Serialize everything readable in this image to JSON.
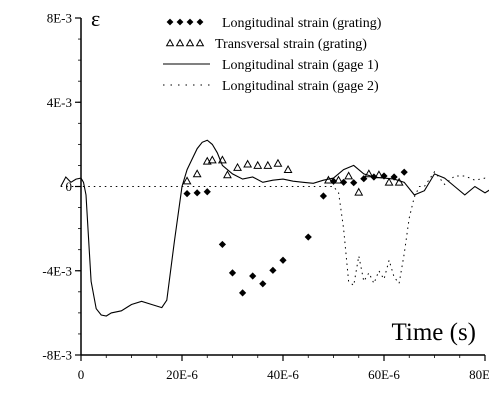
{
  "chart_data": {
    "type": "line",
    "ylabel": "ε",
    "xlabel": "Time (s)",
    "xlim": [
      -4e-06,
      8.5e-05
    ],
    "ylim": [
      -0.008,
      0.008
    ],
    "x_ticks": [
      0,
      2e-05,
      4e-05,
      6e-05,
      8e-05
    ],
    "x_tick_labels": [
      "0",
      "20E-6",
      "40E-6",
      "60E-6",
      "80E-6"
    ],
    "y_ticks": [
      0.008,
      0.004,
      0,
      -0.004,
      -0.008
    ],
    "y_tick_labels": [
      "8E-3",
      "4E-3",
      "0",
      "-4E-3",
      "-8E-3"
    ],
    "legend_position": "top-right",
    "grid": false,
    "series": [
      {
        "name": "Longitudinal strain (grating)",
        "marker": "diamond",
        "color": "#000000",
        "x": [
          2.1e-05,
          2.3e-05,
          2.5e-05,
          2.8e-05,
          3e-05,
          3.2e-05,
          3.4e-05,
          3.6e-05,
          3.8e-05,
          4e-05,
          4.5e-05,
          4.8e-05,
          5e-05,
          5.2e-05,
          5.4e-05,
          5.6e-05,
          5.8e-05,
          6e-05,
          6.2e-05,
          6.4e-05
        ],
        "y": [
          -0.00034,
          -0.0003,
          -0.00025,
          -0.00275,
          -0.0041,
          -0.00505,
          -0.00425,
          -0.00462,
          -0.00398,
          -0.0035,
          -0.0024,
          -0.00045,
          0.00025,
          0.0002,
          0.00018,
          0.00037,
          0.00045,
          0.0005,
          0.00045,
          0.00068
        ]
      },
      {
        "name": "Transversal strain (grating)",
        "marker": "triangle",
        "color": "#000000",
        "x": [
          2.1e-05,
          2.3e-05,
          2.5e-05,
          2.6e-05,
          2.8e-05,
          2.9e-05,
          3.1e-05,
          3.3e-05,
          3.5e-05,
          3.7e-05,
          3.9e-05,
          4.1e-05,
          4.9e-05,
          5.1e-05,
          5.3e-05,
          5.5e-05,
          5.7e-05,
          5.9e-05,
          6.1e-05,
          6.3e-05
        ],
        "y": [
          0.00026,
          0.0006,
          0.0012,
          0.00126,
          0.00126,
          0.00055,
          0.0009,
          0.00106,
          0.001,
          0.001,
          0.0011,
          0.0008,
          0.0003,
          0.0003,
          0.0005,
          -0.00027,
          0.0006,
          0.00055,
          0.0002,
          0.0002
        ]
      },
      {
        "name": "Longitudinal strain (gage 1)",
        "line": "solid",
        "color": "#000000",
        "x": [
          -4e-06,
          -3e-06,
          -2e-06,
          -1e-06,
          0,
          5e-07,
          1e-06,
          1.5e-06,
          2e-06,
          3e-06,
          4e-06,
          5e-06,
          6e-06,
          8e-06,
          1e-05,
          1.2e-05,
          1.4e-05,
          1.6e-05,
          1.7e-05,
          1.85e-05,
          2e-05,
          2.1e-05,
          2.2e-05,
          2.3e-05,
          2.4e-05,
          2.5e-05,
          2.6e-05,
          2.7e-05,
          2.8e-05,
          3e-05,
          3.2e-05,
          3.4e-05,
          3.6e-05,
          3.8e-05,
          4e-05,
          4.2e-05,
          4.4e-05,
          4.6e-05,
          4.8e-05,
          5e-05,
          5.2e-05,
          5.4e-05,
          5.6e-05,
          5.8e-05,
          6e-05,
          6.2e-05,
          6.4e-05,
          6.6e-05,
          6.8e-05,
          7e-05,
          7.2e-05,
          7.4e-05,
          7.6e-05,
          7.8e-05,
          8e-05,
          8.2e-05,
          8.4e-05,
          8.5e-05
        ],
        "y": [
          0.0,
          0.00045,
          0.0002,
          0.00035,
          0.0004,
          0.0002,
          -0.0004,
          -0.0025,
          -0.0045,
          -0.0058,
          -0.0061,
          -0.00615,
          -0.006,
          -0.0059,
          -0.0056,
          -0.00545,
          -0.0056,
          -0.00575,
          -0.0054,
          -0.0026,
          0.0,
          0.0008,
          0.0013,
          0.0018,
          0.0021,
          0.0022,
          0.002,
          0.0016,
          0.001,
          0.0006,
          0.00035,
          0.00045,
          0.0002,
          0.0003,
          0.00035,
          0.00025,
          0.0002,
          0.00015,
          0.0003,
          0.0004,
          0.0008,
          0.001,
          0.0006,
          0.00045,
          0.0004,
          0.00035,
          0.0002,
          -0.0004,
          -0.0002,
          0.0006,
          0.0004,
          0.0,
          -0.0004,
          0.0,
          -0.0003,
          0.0,
          -0.00015,
          -0.0001
        ]
      },
      {
        "name": "Longitudinal strain (gage 2)",
        "line": "dotted",
        "color": "#000000",
        "x": [
          -4e-06,
          0,
          1e-05,
          2e-05,
          3e-05,
          4e-05,
          4.8e-05,
          5e-05,
          5.1e-05,
          5.2e-05,
          5.3e-05,
          5.4e-05,
          5.5e-05,
          5.6e-05,
          5.7e-05,
          5.8e-05,
          5.9e-05,
          6e-05,
          6.1e-05,
          6.2e-05,
          6.3e-05,
          6.4e-05,
          6.5e-05,
          6.6e-05,
          6.7e-05,
          6.8e-05,
          7e-05,
          7.2e-05,
          7.4e-05,
          7.6e-05,
          7.8e-05,
          8e-05,
          8.2e-05,
          8.4e-05,
          8.5e-05
        ],
        "y": [
          0.0,
          0.0,
          0.0,
          0.0,
          0.0,
          0.0,
          0.0,
          0.0,
          -0.0003,
          -0.002,
          -0.0045,
          -0.0047,
          -0.0033,
          -0.0045,
          -0.0041,
          -0.0046,
          -0.004,
          -0.0044,
          -0.0035,
          -0.0043,
          -0.0046,
          -0.0032,
          -0.0015,
          -0.0005,
          0.0,
          0.0,
          0.0007,
          0.0001,
          0.0005,
          0.0005,
          0.0003,
          0.0004,
          0.0003,
          0.0004,
          0.0003
        ]
      }
    ]
  }
}
